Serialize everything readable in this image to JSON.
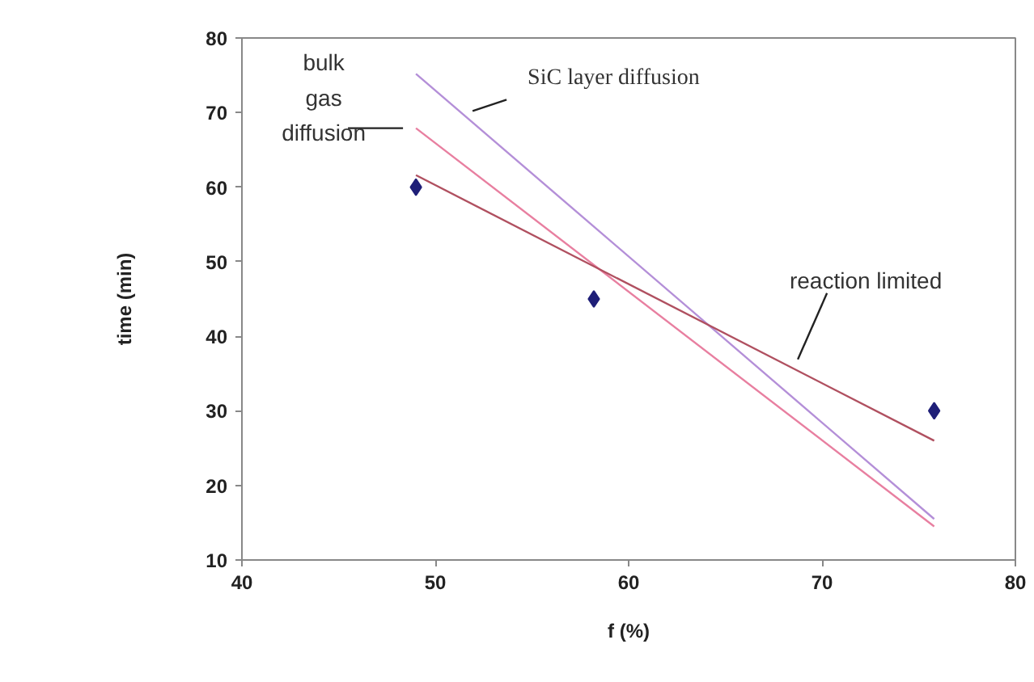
{
  "chart_data": {
    "type": "scatter",
    "xlabel": "f (%)",
    "ylabel": "time (min)",
    "xlim": [
      40,
      80
    ],
    "ylim": [
      10,
      80
    ],
    "xticks": [
      40,
      50,
      60,
      70,
      80
    ],
    "yticks": [
      10,
      20,
      30,
      40,
      50,
      60,
      70,
      80
    ],
    "grid": false,
    "series": [
      {
        "color": "#1f1f78",
        "marker": "diamond",
        "x": [
          49,
          58.2,
          75.8
        ],
        "values": [
          60,
          45,
          30
        ]
      },
      {
        "name": "bulk\ngas\ndiffusion",
        "type": "line",
        "color": "#e87fa0",
        "x": [
          49,
          75.8
        ],
        "values": [
          67.9,
          14.5
        ]
      },
      {
        "name": "SiC layer diffusion",
        "type": "line",
        "color": "#b48fd8",
        "x": [
          49,
          75.8
        ],
        "values": [
          75.2,
          15.5
        ]
      },
      {
        "name": "reaction limited",
        "type": "line",
        "color": "#b05060",
        "x": [
          49,
          75.8
        ],
        "values": [
          61.6,
          26
        ]
      }
    ]
  }
}
